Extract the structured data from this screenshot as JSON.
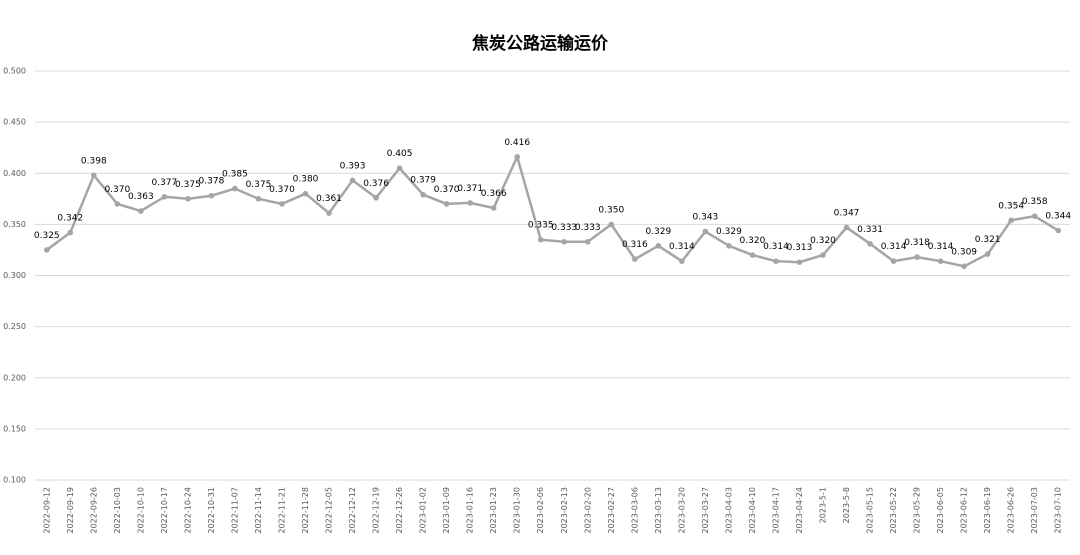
{
  "chart_data": {
    "type": "line",
    "title": "焦炭公路运输运价",
    "categories": [
      "2022-09-12",
      "2022-09-19",
      "2022-09-26",
      "2022-10-03",
      "2022-10-10",
      "2022-10-17",
      "2022-10-24",
      "2022-10-31",
      "2022-11-07",
      "2022-11-14",
      "2022-11-21",
      "2022-11-28",
      "2022-12-05",
      "2022-12-12",
      "2022-12-19",
      "2022-12-26",
      "2023-01-02",
      "2023-01-09",
      "2023-01-16",
      "2023-01-23",
      "2023-01-30",
      "2023-02-06",
      "2023-02-13",
      "2023-02-20",
      "2023-02-27",
      "2023-03-06",
      "2023-03-13",
      "2023-03-20",
      "2023-03-27",
      "2023-04-03",
      "2023-04-10",
      "2023-04-17",
      "2023-04-24",
      "2023-5-1",
      "2023-5-8",
      "2023-05-15",
      "2023-05-22",
      "2023-05-29",
      "2023-06-05",
      "2023-06-12",
      "2023-06-19",
      "2023-06-26",
      "2023-07-03",
      "2023-07-10"
    ],
    "values": [
      0.325,
      0.342,
      0.398,
      0.37,
      0.363,
      0.377,
      0.375,
      0.378,
      0.385,
      0.375,
      0.37,
      0.38,
      0.361,
      0.393,
      0.376,
      0.405,
      0.379,
      0.37,
      0.371,
      0.366,
      0.416,
      0.335,
      0.333,
      0.333,
      0.35,
      0.316,
      0.329,
      0.314,
      0.343,
      0.329,
      0.32,
      0.314,
      0.313,
      0.32,
      0.347,
      0.331,
      0.314,
      0.318,
      0.314,
      0.309,
      0.321,
      0.354,
      0.358,
      0.344
    ],
    "value_labels": [
      "0.325",
      "0.342",
      "0.398",
      "0.370",
      "0.363",
      "0.377",
      "0.375",
      "0.378",
      "0.385",
      "0.375",
      "0.370",
      "0.380",
      "0.361",
      "0.393",
      "0.376",
      "0.405",
      "0.379",
      "0.370",
      "0.371",
      "0.366",
      "0.416",
      "0.335",
      "0.333",
      "0.333",
      "0.350",
      "0.316",
      "0.329",
      "0.314",
      "0.343",
      "0.329",
      "0.320",
      "0.314",
      "0.313",
      "0.320",
      "0.347",
      "0.331",
      "0.314",
      "0.318",
      "0.314",
      "0.309",
      "0.321",
      "0.354",
      "0.358",
      "0.344"
    ],
    "color": "#a5a5a5",
    "ylim": [
      0.1,
      0.5
    ],
    "yticks": [
      {
        "value": 0.1,
        "label": "0.100"
      },
      {
        "value": 0.15,
        "label": "0.150"
      },
      {
        "value": 0.2,
        "label": "0.200"
      },
      {
        "value": 0.25,
        "label": "0.250"
      },
      {
        "value": 0.3,
        "label": "0.300"
      },
      {
        "value": 0.35,
        "label": "0.350"
      },
      {
        "value": 0.4,
        "label": "0.400"
      },
      {
        "value": 0.45,
        "label": "0.450"
      },
      {
        "value": 0.5,
        "label": "0.500"
      }
    ],
    "grid": true
  }
}
